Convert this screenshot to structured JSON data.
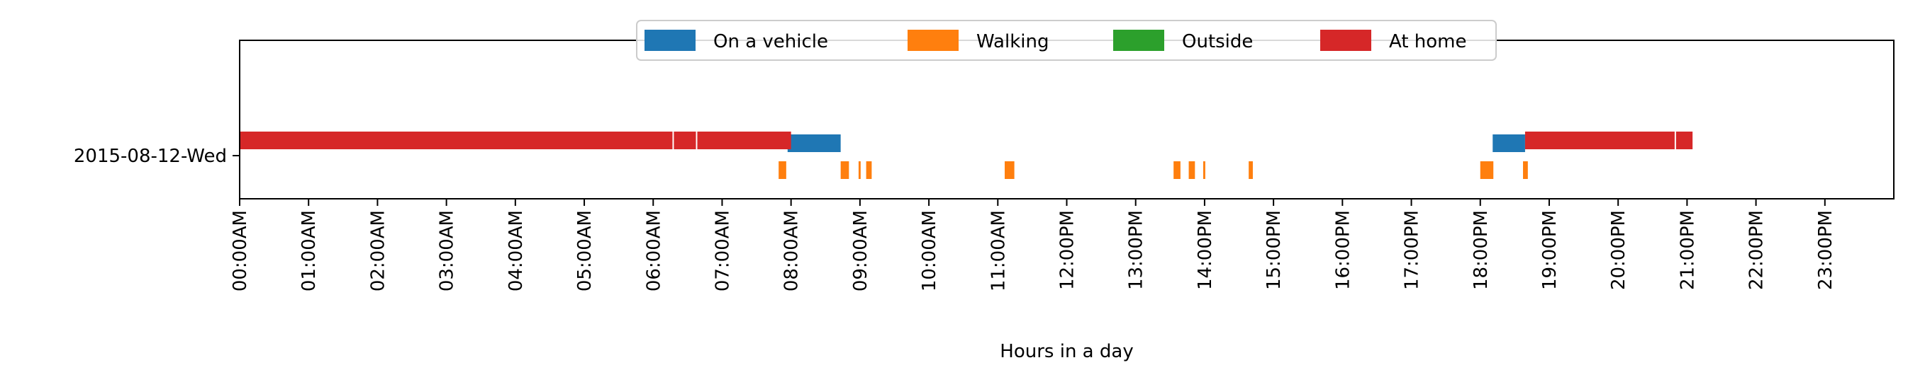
{
  "chart_data": {
    "type": "timeline",
    "title": "",
    "xlabel": "Hours in a day",
    "ylabel": "",
    "xlim": [
      0,
      24
    ],
    "grid": false,
    "legend_position": "upper-center",
    "categories": [
      "2015-08-12-Wed"
    ],
    "x_tick_values": [
      0,
      1,
      2,
      3,
      4,
      5,
      6,
      7,
      8,
      9,
      10,
      11,
      12,
      13,
      14,
      15,
      16,
      17,
      18,
      19,
      20,
      21,
      22,
      23
    ],
    "x_tick_labels": [
      "00:00AM",
      "01:00AM",
      "02:00AM",
      "03:00AM",
      "04:00AM",
      "05:00AM",
      "06:00AM",
      "07:00AM",
      "08:00AM",
      "09:00AM",
      "10:00AM",
      "11:00AM",
      "12:00PM",
      "13:00PM",
      "14:00PM",
      "15:00PM",
      "16:00PM",
      "17:00PM",
      "18:00PM",
      "19:00PM",
      "20:00PM",
      "21:00PM",
      "22:00PM",
      "23:00PM"
    ],
    "series": [
      {
        "name": "On a vehicle",
        "color": "#1f77b4",
        "intervals": [
          [
            7.95,
            8.72
          ],
          [
            18.18,
            18.65
          ]
        ]
      },
      {
        "name": "Walking",
        "color": "#ff7f0e",
        "intervals": [
          [
            7.82,
            7.93
          ],
          [
            8.72,
            8.84
          ],
          [
            8.98,
            9.01
          ],
          [
            9.09,
            9.17
          ],
          [
            11.1,
            11.24
          ],
          [
            13.55,
            13.65
          ],
          [
            13.77,
            13.86
          ],
          [
            13.98,
            14.01
          ],
          [
            14.64,
            14.7
          ],
          [
            18.0,
            18.19
          ],
          [
            18.62,
            18.69
          ]
        ]
      },
      {
        "name": "Outside",
        "color": "#2ca02c",
        "intervals": []
      },
      {
        "name": "At home",
        "color": "#d62728",
        "intervals": [
          [
            0.0,
            6.28
          ],
          [
            6.3,
            6.62
          ],
          [
            6.64,
            8.0
          ],
          [
            18.65,
            20.82
          ],
          [
            20.84,
            21.08
          ]
        ]
      }
    ]
  }
}
